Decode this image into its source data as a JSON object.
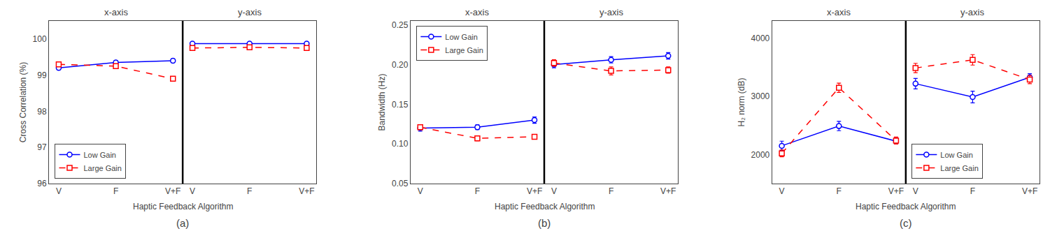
{
  "chart_data": [
    {
      "type": "line",
      "ylabel": "Cross Correlation (%)",
      "xlabel": "Haptic Feedback Algorithm",
      "annotations": [
        "(a)"
      ],
      "categories": [
        "V",
        "F",
        "V+F"
      ],
      "ylim": [
        96,
        100.5
      ],
      "yticks": [
        96,
        97,
        98,
        99,
        100
      ],
      "grid": false,
      "subplots": [
        {
          "title": "x-axis",
          "legend": "lower left",
          "series": [
            {
              "name": "Low Gain",
              "color": "#0000FF",
              "marker": "circle",
              "line_style": "solid",
              "values": [
                99.2,
                99.35,
                99.4
              ],
              "errors": [
                0.05,
                0.05,
                0.05
              ]
            },
            {
              "name": "Large Gain",
              "color": "#FF0000",
              "marker": "square",
              "line_style": "dash",
              "values": [
                99.3,
                99.25,
                98.9
              ],
              "errors": [
                0.05,
                0.05,
                0.06
              ]
            }
          ]
        },
        {
          "title": "y-axis",
          "tick_labels": "x",
          "series": [
            {
              "name": "Low Gain",
              "color": "#0000FF",
              "marker": "circle",
              "line_style": "solid",
              "values": [
                99.87,
                99.87,
                99.87
              ],
              "errors": [
                0.03,
                0.03,
                0.03
              ]
            },
            {
              "name": "Large Gain",
              "color": "#FF0000",
              "marker": "square",
              "line_style": "dash",
              "values": [
                99.75,
                99.77,
                99.75
              ],
              "errors": [
                0.06,
                0.05,
                0.05
              ]
            }
          ]
        }
      ]
    },
    {
      "type": "line",
      "ylabel": "Bandwidth (Hz)",
      "xlabel": "Haptic Feedback Algorithm",
      "annotations": [
        "(b)"
      ],
      "categories": [
        "V",
        "F",
        "V+F"
      ],
      "ylim": [
        0.05,
        0.255
      ],
      "yticks": [
        0.05,
        {
          "value": 0.1,
          "label": "0.10"
        },
        0.15,
        {
          "value": 0.2,
          "label": "0.20"
        },
        0.25
      ],
      "grid": false,
      "subplots": [
        {
          "title": "x-axis",
          "legend": "upper left",
          "series": [
            {
              "name": "Low Gain",
              "color": "#0000FF",
              "marker": "circle",
              "line_style": "solid",
              "values": [
                0.12,
                0.121,
                0.13
              ],
              "errors": [
                0.004,
                0.003,
                0.004
              ]
            },
            {
              "name": "Large Gain",
              "color": "#FF0000",
              "marker": "square",
              "line_style": "dash",
              "values": [
                0.121,
                0.107,
                0.109
              ],
              "errors": [
                0.003,
                0.003,
                0.003
              ]
            }
          ]
        },
        {
          "title": "y-axis",
          "tick_labels": "x",
          "series": [
            {
              "name": "Low Gain",
              "color": "#0000FF",
              "marker": "circle",
              "line_style": "solid",
              "values": [
                0.2,
                0.206,
                0.211
              ],
              "errors": [
                0.004,
                0.004,
                0.004
              ]
            },
            {
              "name": "Large Gain",
              "color": "#FF0000",
              "marker": "square",
              "line_style": "dash",
              "values": [
                0.202,
                0.192,
                0.193
              ],
              "errors": [
                0.004,
                0.005,
                0.004
              ]
            }
          ]
        }
      ]
    },
    {
      "type": "line",
      "ylabel": "H₂ norm (dB)",
      "xlabel": "Haptic Feedback Algorithm",
      "annotations": [
        "(c)"
      ],
      "categories": [
        "V",
        "F",
        "V+F"
      ],
      "ylim": [
        1500,
        4300
      ],
      "yticks": [
        2000,
        3000,
        4000
      ],
      "grid": false,
      "subplots": [
        {
          "title": "x-axis",
          "series": [
            {
              "name": "Low Gain",
              "color": "#0000FF",
              "marker": "circle",
              "line_style": "solid",
              "values": [
                2150,
                2490,
                2230
              ],
              "errors": [
                80,
                80,
                50
              ]
            },
            {
              "name": "Large Gain",
              "color": "#FF0000",
              "marker": "square",
              "line_style": "dash",
              "values": [
                2020,
                3150,
                2240
              ],
              "errors": [
                60,
                80,
                60
              ]
            }
          ]
        },
        {
          "title": "y-axis",
          "tick_labels": "x",
          "legend": "lower left",
          "series": [
            {
              "name": "Low Gain",
              "color": "#0000FF",
              "marker": "circle",
              "line_style": "solid",
              "values": [
                3220,
                2990,
                3330
              ],
              "errors": [
                90,
                100,
                60
              ]
            },
            {
              "name": "Large Gain",
              "color": "#FF0000",
              "marker": "square",
              "line_style": "dash",
              "values": [
                3490,
                3630,
                3290
              ],
              "errors": [
                80,
                90,
                70
              ]
            }
          ]
        }
      ]
    }
  ]
}
